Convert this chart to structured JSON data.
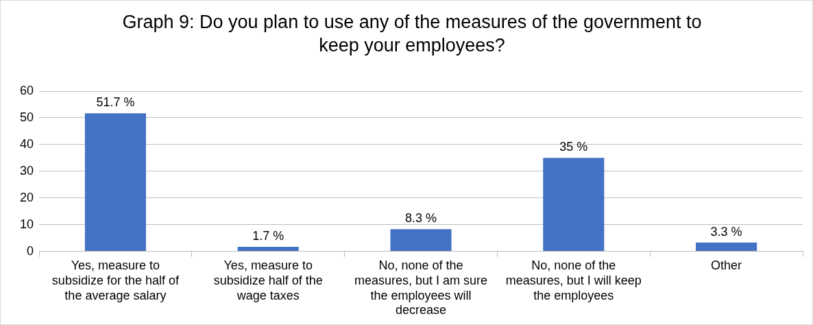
{
  "chart_data": {
    "type": "bar",
    "title": "Graph 9: Do you plan to use any of the measures of the government to keep your employees?",
    "categories": [
      "Yes, measure to subsidize for the half of the average salary",
      "Yes, measure to subsidize half of the wage taxes",
      "No, none of the measures, but I am sure the employees will decrease",
      "No, none of the measures, but I will keep the employees",
      "Other"
    ],
    "values": [
      51.7,
      1.7,
      8.3,
      35,
      3.3
    ],
    "value_labels": [
      "51.7 %",
      "1.7 %",
      "8.3 %",
      "35 %",
      "3.3 %"
    ],
    "color": "#4472c4",
    "ylim": [
      0,
      60
    ],
    "yticks": [
      0,
      10,
      20,
      30,
      40,
      50,
      60
    ],
    "grid": "y",
    "legend": false
  }
}
